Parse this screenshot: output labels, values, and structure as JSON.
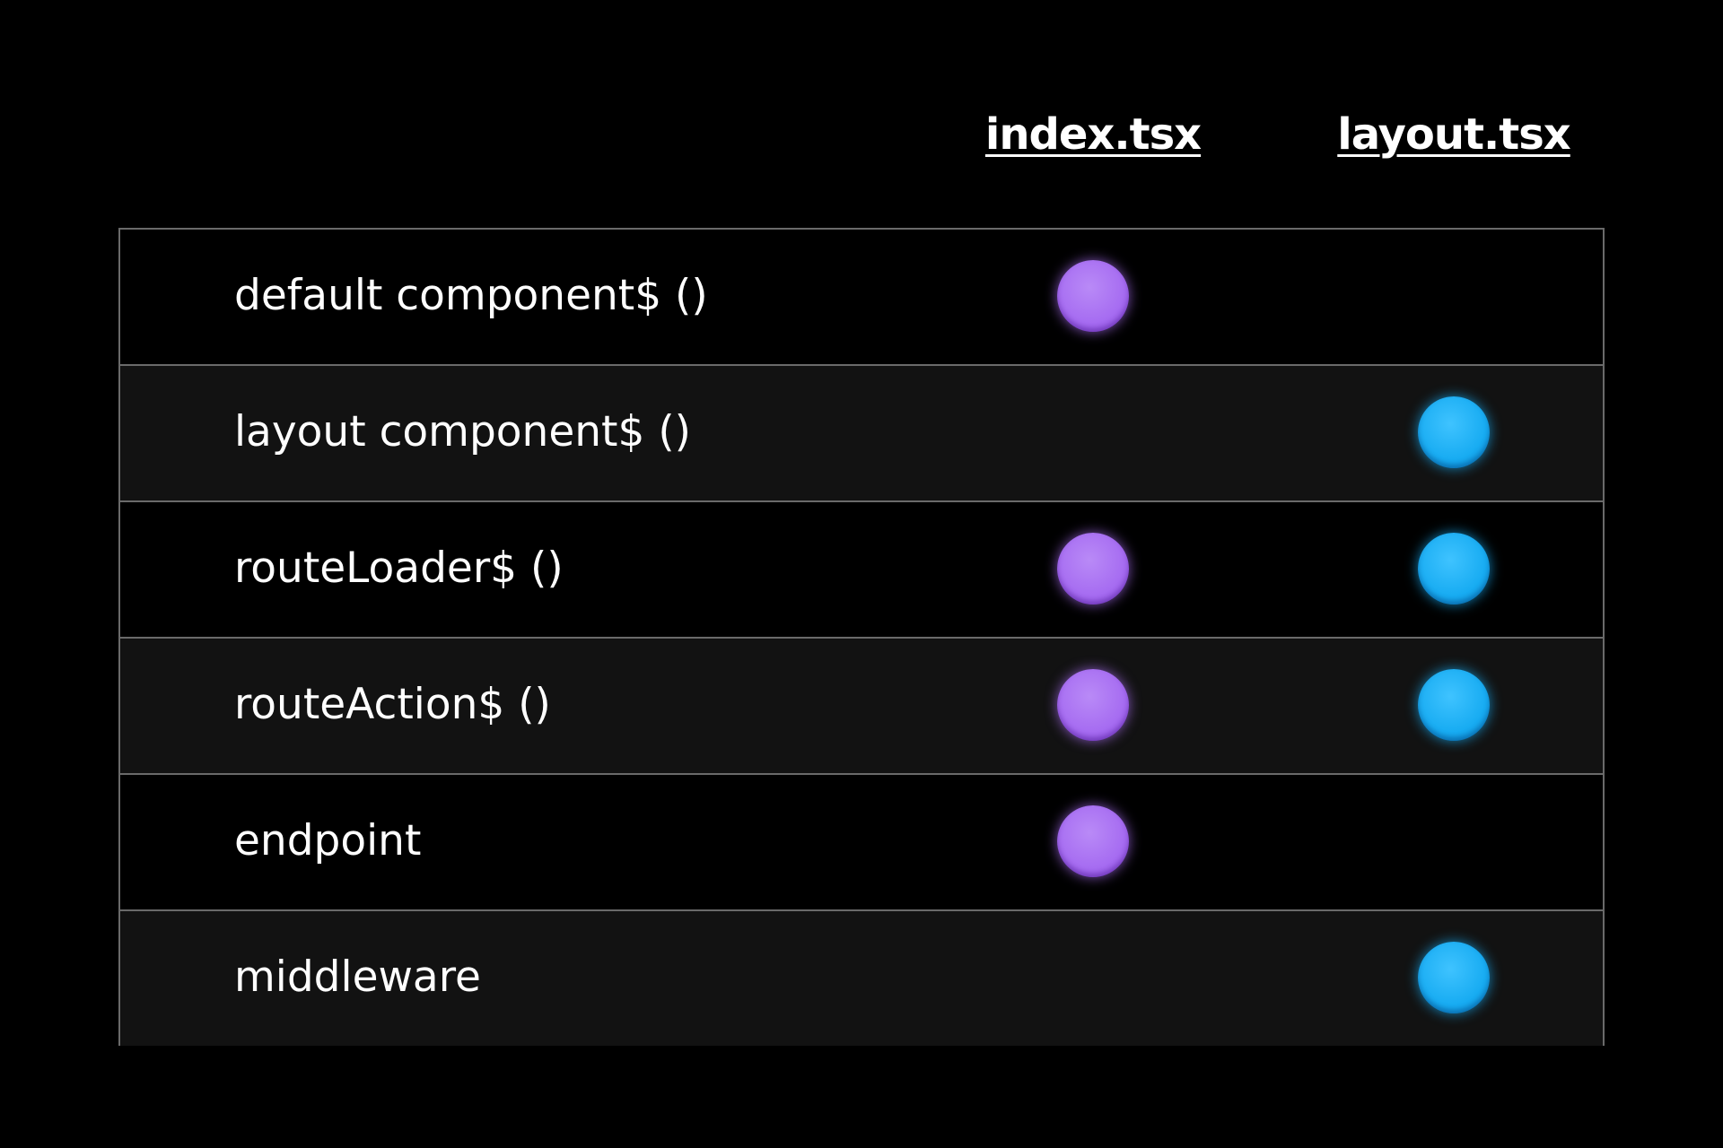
{
  "columns": {
    "index": "index.tsx",
    "layout": "layout.tsx"
  },
  "colors": {
    "index_dot": "#a66cf1",
    "layout_dot": "#18acf2"
  },
  "rows": [
    {
      "label": "default component$ ()",
      "index": true,
      "layout": false
    },
    {
      "label": "layout component$ ()",
      "index": false,
      "layout": true
    },
    {
      "label": "routeLoader$ ()",
      "index": true,
      "layout": true
    },
    {
      "label": "routeAction$ ()",
      "index": true,
      "layout": true
    },
    {
      "label": "endpoint",
      "index": true,
      "layout": false
    },
    {
      "label": "middleware",
      "index": false,
      "layout": true
    }
  ]
}
